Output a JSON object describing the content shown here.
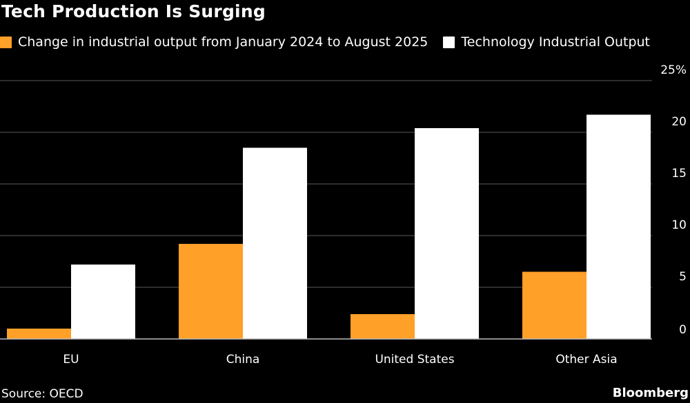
{
  "title": "Tech Production Is Surging",
  "source": "Source: OECD",
  "brand": "Bloomberg",
  "chart_data": {
    "type": "bar",
    "categories": [
      "EU",
      "China",
      "United States",
      "Other Asia"
    ],
    "series": [
      {
        "name": "Change in industrial output from January 2024 to August 2025",
        "color": "#FFA028",
        "values": [
          1.0,
          9.2,
          2.4,
          6.5
        ]
      },
      {
        "name": "Technology Industrial Output",
        "color": "#FFFFFF",
        "values": [
          7.2,
          18.5,
          20.4,
          21.7
        ]
      }
    ],
    "ylim": [
      0,
      25
    ],
    "yticks": [
      0,
      5,
      10,
      15,
      20,
      25
    ],
    "ytick_labels": [
      "0",
      "5",
      "10",
      "15",
      "20",
      "25%"
    ],
    "y_axis_position": "right",
    "grid": true,
    "legend_position": "top-left"
  }
}
